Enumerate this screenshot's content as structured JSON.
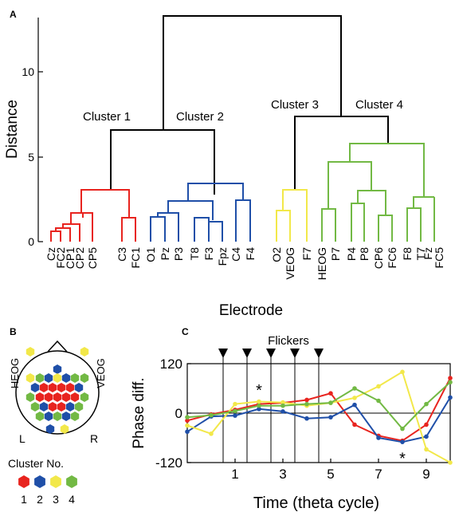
{
  "panels": {
    "a": "A",
    "b": "B",
    "c": "C"
  },
  "colors": {
    "cluster1": "#e8241f",
    "cluster2": "#1f4fa8",
    "cluster3": "#f2e84a",
    "cluster4": "#72b944",
    "root": "#000000"
  },
  "chart_data": [
    {
      "type": "dendrogram",
      "ylabel": "Distance",
      "xlabel": "Electrode",
      "ylim": [
        0,
        13.5
      ],
      "yticks": [
        0,
        5,
        10
      ],
      "leaves": [
        "Cz",
        "FC2",
        "CP1",
        "CP2",
        "CP5",
        "C3",
        "FC1",
        "O1",
        "Pz",
        "P3",
        "T8",
        "F3",
        "Fpz",
        "C4",
        "F4",
        "O2",
        "VEOG",
        "F7",
        "HEOG",
        "P7",
        "P4",
        "P8",
        "CP6",
        "FC6",
        "F8",
        "T7",
        "Fz",
        "FC5"
      ],
      "cluster_labels": [
        "Cluster 1",
        "Cluster 2",
        "Cluster 3",
        "Cluster 4"
      ],
      "merge_heights": {
        "root": 13.3,
        "cluster1_cluster2": 6.6,
        "cluster3_cluster4": 7.4,
        "cluster1": 3.1,
        "cluster2": 3.5,
        "cluster3": 3.1,
        "cluster4": 5.8
      }
    },
    {
      "type": "scalp-map",
      "left_label": "L",
      "right_label": "R",
      "eog_labels": [
        "HEOG",
        "VEOG"
      ],
      "legend_title": "Cluster No.",
      "legend_items": [
        "1",
        "2",
        "3",
        "4"
      ]
    },
    {
      "type": "line",
      "title": "Flickers",
      "xlabel": "Time (theta cycle)",
      "ylabel": "Phase diff.",
      "xlim": [
        -1,
        10
      ],
      "ylim": [
        -120,
        120
      ],
      "xticks": [
        "1",
        "3",
        "5",
        "7",
        "9"
      ],
      "yticks": [
        "120",
        "0",
        "-120"
      ],
      "flicker_times": [
        0.5,
        1.5,
        2.5,
        3.5,
        4.5
      ],
      "annotations": [
        {
          "text": "*",
          "x": 2,
          "y": 58
        },
        {
          "text": "*",
          "x": 8,
          "y": -107
        }
      ],
      "x": [
        -1,
        0,
        1,
        2,
        3,
        4,
        5,
        6,
        7,
        8,
        9,
        10
      ],
      "series": [
        {
          "color": "#e8241f",
          "values": [
            -18,
            -3,
            8,
            22,
            25,
            32,
            48,
            -28,
            -55,
            -67,
            -28,
            85
          ]
        },
        {
          "color": "#1f4fa8",
          "values": [
            -45,
            -8,
            -6,
            10,
            4,
            -13,
            -10,
            20,
            -60,
            -70,
            -57,
            38
          ]
        },
        {
          "color": "#f2e84a",
          "values": [
            -30,
            -50,
            22,
            28,
            26,
            18,
            25,
            37,
            65,
            100,
            -88,
            -120
          ]
        },
        {
          "color": "#72b944",
          "values": [
            -10,
            -5,
            5,
            18,
            18,
            22,
            25,
            60,
            30,
            -38,
            22,
            75
          ]
        }
      ]
    }
  ]
}
